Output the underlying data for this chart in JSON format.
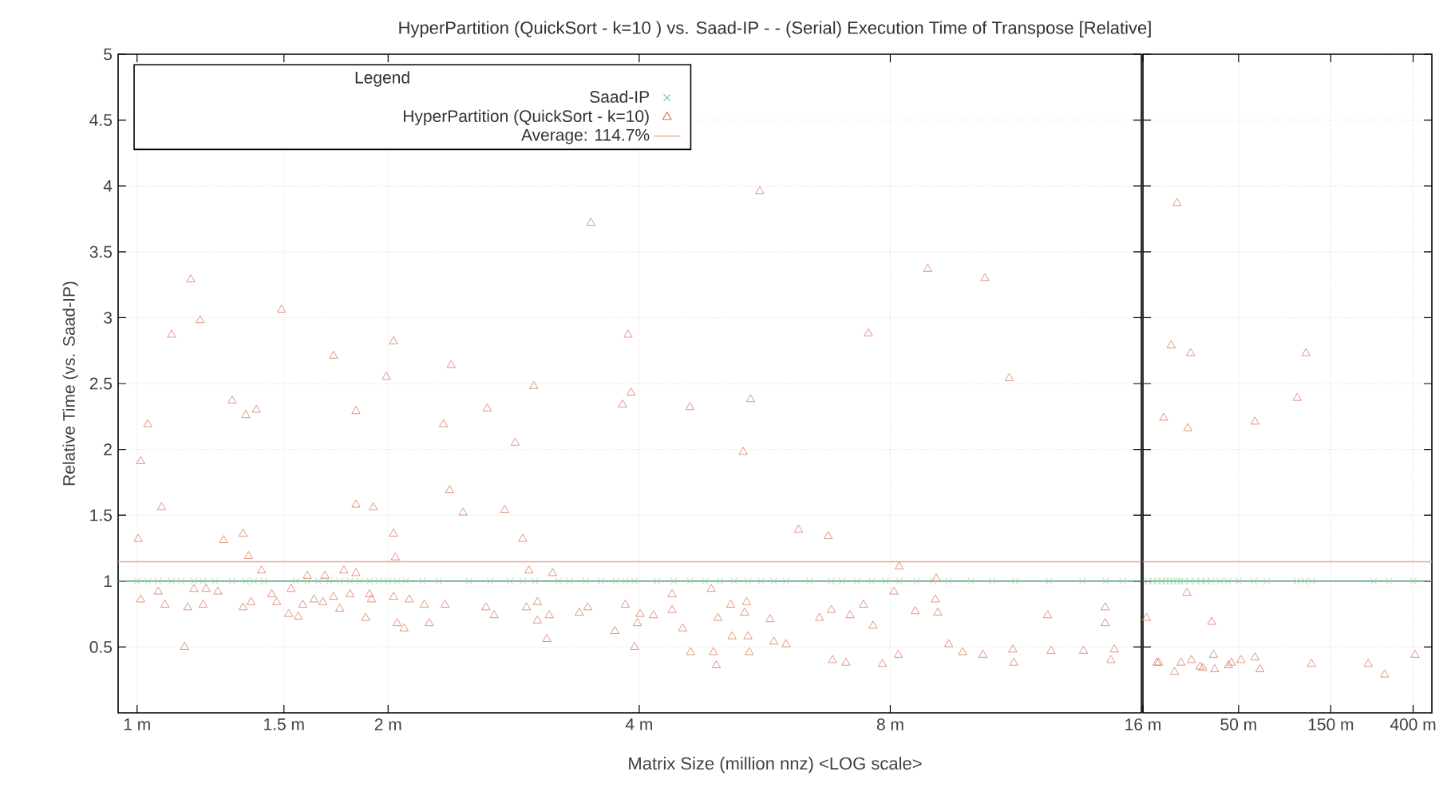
{
  "chart_data": [
    {
      "type": "scatter",
      "title": "HyperPartition (QuickSort - k=10 )  vs.  Saad-IP  - -  (Serial) Execution Time of Transpose  [Relative]",
      "xlabel": "Matrix Size (million nnz) <LOG scale>",
      "ylabel": "Relative Time (vs. Saad-IP)",
      "log": "x",
      "grid": true,
      "legend": "top left",
      "legend_title": "Legend",
      "xlim": [
        0.949,
        16
      ],
      "xticks": [
        {
          "value": 1,
          "label": "1 m"
        },
        {
          "value": 1.5,
          "label": "1.5 m"
        },
        {
          "value": 2,
          "label": "2 m"
        },
        {
          "value": 4,
          "label": "4 m"
        },
        {
          "value": 8,
          "label": "8 m"
        }
      ],
      "ylim": [
        0,
        5
      ],
      "yticks": [
        0.5,
        1,
        1.5,
        2,
        2.5,
        3,
        3.5,
        4,
        4.5,
        5
      ],
      "ref_lines": [
        {
          "axis": "y",
          "value": 1,
          "color": "#4f9a6a",
          "line_style": "solid"
        },
        {
          "axis": "y",
          "value": 1.147,
          "label": "Average: 114.7%",
          "color": "#e8a58c",
          "line_style": "solid"
        }
      ],
      "series": [
        {
          "name": "Saad-IP",
          "color": "#8fcf9f",
          "marker": "cross",
          "x": [
            1.0,
            1.03,
            1.06,
            1.1,
            1.13,
            1.17,
            1.2,
            1.24,
            1.3,
            1.35,
            1.38,
            1.42,
            1.55,
            1.6,
            1.65,
            1.7,
            1.75,
            1.8,
            1.85,
            1.9,
            1.95,
            2.0,
            2.05,
            2.1,
            2.2,
            2.3,
            2.5,
            2.65,
            2.8,
            2.9,
            3.0,
            3.2,
            3.3,
            3.45,
            3.6,
            3.75,
            3.85,
            3.95,
            4.2,
            4.4,
            4.6,
            4.8,
            5.0,
            5.2,
            5.4,
            5.6,
            5.8,
            6.0,
            6.4,
            6.8,
            7.0,
            7.3,
            7.6,
            7.9,
            8.2,
            8.6,
            9.0,
            9.4,
            10.0,
            10.6,
            11.3,
            12.4,
            13.6,
            14.5,
            15.2
          ],
          "values": [
            1,
            1,
            1,
            1,
            1,
            1,
            1,
            1,
            1,
            1,
            1,
            1,
            1,
            1,
            1,
            1,
            1,
            1,
            1,
            1,
            1,
            1,
            1,
            1,
            1,
            1,
            1,
            1,
            1,
            1,
            1,
            1,
            1,
            1,
            1,
            1,
            1,
            1,
            1,
            1,
            1,
            1,
            1,
            1,
            1,
            1,
            1,
            1,
            1,
            1,
            1,
            1,
            1,
            1,
            1,
            1,
            1,
            1,
            1,
            1,
            1,
            1,
            1,
            1,
            1
          ]
        },
        {
          "name": "HyperPartition (QuickSort - k=10)",
          "color": "#d77b5e",
          "marker": "triangle",
          "x": [
            1.003,
            1.01,
            1.03,
            1.07,
            1.1,
            1.16,
            1.19,
            1.14,
            1.01,
            1.08,
            1.06,
            1.15,
            1.2,
            1.17,
            1.21,
            1.25,
            1.27,
            1.3,
            1.35,
            1.39,
            1.34,
            1.36,
            1.34,
            1.37,
            1.41,
            1.45,
            1.47,
            1.49,
            1.53,
            1.52,
            1.56,
            1.58,
            1.6,
            1.63,
            1.67,
            1.72,
            1.68,
            1.72,
            1.75,
            1.77,
            1.8,
            1.83,
            1.83,
            1.83,
            1.9,
            1.88,
            1.92,
            1.91,
            1.99,
            2.03,
            2.03,
            2.04,
            2.03,
            2.05,
            2.09,
            2.12,
            2.21,
            2.24,
            2.33,
            2.38,
            2.37,
            2.46,
            2.34,
            2.63,
            2.62,
            2.68,
            2.84,
            2.76,
            2.9,
            2.99,
            2.95,
            2.93,
            3.02,
            3.02,
            3.1,
            3.12,
            3.15,
            3.5,
            3.88,
            3.82,
            3.91,
            4.6,
            5.44,
            5.58,
            5.33,
            6.21,
            6.74,
            7.53,
            8.87,
            10.39,
            11.11,
            8.2,
            3.85,
            3.74,
            3.95,
            3.98,
            4.01,
            4.16,
            4.38,
            4.38,
            4.51,
            4.61,
            4.91,
            4.95,
            4.88,
            4.97,
            5.15,
            5.17,
            5.38,
            5.35,
            5.4,
            5.42,
            5.74,
            5.8,
            6.0,
            6.58,
            6.8,
            6.82,
            7.08,
            7.16,
            7.43,
            7.63,
            7.83,
            8.18,
            8.08,
            8.57,
            9.06,
            9.08,
            9.12,
            9.4,
            9.77,
            10.33,
            11.22,
            11.25,
            12.35,
            12.47,
            13.64,
            14.48,
            14.48,
            14.85,
            14.71,
            3.39,
            3.47
          ],
          "values": [
            1.32,
            1.91,
            2.19,
            1.56,
            2.87,
            3.29,
            2.98,
            0.5,
            0.86,
            0.82,
            0.92,
            0.8,
            0.82,
            0.94,
            0.94,
            0.92,
            1.31,
            2.37,
            2.26,
            2.3,
            1.36,
            1.19,
            0.8,
            0.84,
            1.08,
            0.9,
            0.84,
            3.06,
            0.94,
            0.75,
            0.73,
            0.82,
            1.04,
            0.86,
            0.84,
            2.71,
            1.04,
            0.88,
            0.79,
            1.08,
            0.9,
            2.29,
            1.58,
            1.06,
            0.9,
            0.72,
            1.56,
            0.86,
            2.55,
            2.82,
            1.36,
            1.18,
            0.88,
            0.68,
            0.64,
            0.86,
            0.82,
            0.68,
            2.19,
            2.64,
            1.69,
            1.52,
            0.82,
            2.31,
            0.8,
            0.74,
            2.05,
            1.54,
            1.32,
            2.48,
            1.08,
            0.8,
            0.84,
            0.7,
            0.56,
            0.74,
            1.06,
            3.72,
            2.87,
            2.34,
            2.43,
            2.32,
            2.38,
            3.96,
            1.98,
            1.39,
            1.34,
            2.88,
            3.37,
            3.3,
            2.54,
            1.11,
            0.82,
            0.62,
            0.5,
            0.68,
            0.75,
            0.74,
            0.9,
            0.78,
            0.64,
            0.46,
            0.46,
            0.36,
            0.94,
            0.72,
            0.82,
            0.58,
            0.84,
            0.76,
            0.58,
            0.46,
            0.71,
            0.54,
            0.52,
            0.72,
            0.78,
            0.4,
            0.38,
            0.74,
            0.82,
            0.66,
            0.37,
            0.44,
            0.92,
            0.77,
            0.86,
            1.02,
            0.76,
            0.52,
            0.46,
            0.44,
            0.48,
            0.38,
            0.74,
            0.47,
            0.47,
            0.8,
            0.68,
            0.48,
            0.4,
            0.76,
            0.8
          ]
        }
      ]
    },
    {
      "type": "scatter",
      "log": "x",
      "grid": true,
      "tick_labels": "x",
      "xlim": [
        16,
        500
      ],
      "xticks": [
        {
          "value": 16,
          "label": "16 m"
        },
        {
          "value": 50,
          "label": "50 m"
        },
        {
          "value": 150,
          "label": "150 m"
        },
        {
          "value": 400,
          "label": "400 m"
        }
      ],
      "ylim": [
        0,
        5
      ],
      "yticks": [
        0.5,
        1,
        1.5,
        2,
        2.5,
        3,
        3.5,
        4,
        4.5,
        5
      ],
      "ref_lines": [
        {
          "axis": "y",
          "value": 1,
          "color": "#4f9a6a",
          "line_style": "solid"
        },
        {
          "axis": "y",
          "value": 1.147,
          "color": "#e8a58c",
          "line_style": "solid"
        }
      ],
      "series": [
        {
          "color": "#8fcf9f",
          "marker": "cross",
          "x": [
            17,
            18,
            19,
            20,
            21,
            22,
            23,
            24,
            25,
            26,
            28,
            30,
            32,
            34,
            36,
            40,
            44,
            50,
            60,
            70,
            100,
            110,
            120,
            250,
            300,
            400
          ],
          "values": [
            1,
            1,
            1,
            1,
            1,
            1,
            1,
            1,
            1,
            1,
            1,
            1,
            1,
            1,
            1,
            1,
            1,
            1,
            1,
            1,
            1,
            1,
            1,
            1,
            1,
            1
          ]
        },
        {
          "color": "#d77b5e",
          "marker": "triangle",
          "x": [
            24.0,
            22.4,
            28.2,
            20.5,
            27.3,
            60.8,
            111.5,
            100.5,
            27.0,
            36.3,
            16.7,
            18.9,
            19.3,
            23.3,
            25.2,
            28.5,
            31.6,
            32.7,
            37.1,
            37.6,
            44.3,
            45.9,
            51.4,
            60.8,
            64.5,
            119,
            234,
            285,
            409
          ],
          "values": [
            3.87,
            2.79,
            2.73,
            2.24,
            2.16,
            2.21,
            2.73,
            2.39,
            0.91,
            0.69,
            0.72,
            0.38,
            0.38,
            0.31,
            0.38,
            0.4,
            0.35,
            0.34,
            0.44,
            0.33,
            0.36,
            0.38,
            0.4,
            0.42,
            0.33,
            0.37,
            0.37,
            0.29,
            0.44
          ]
        }
      ]
    }
  ]
}
